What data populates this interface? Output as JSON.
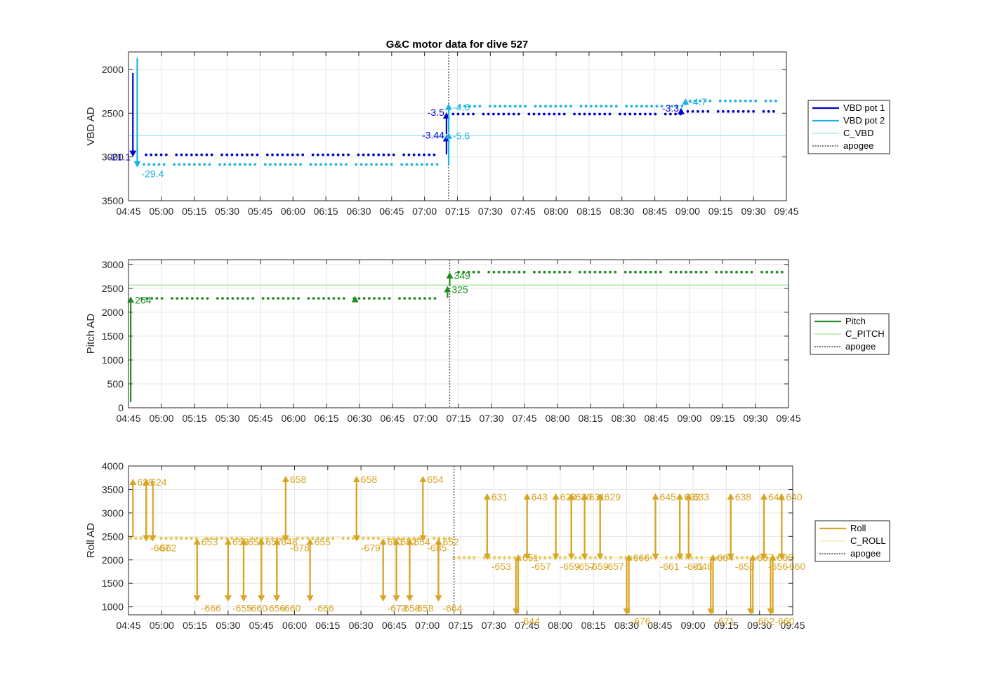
{
  "figure_title": "G&C motor data for dive 527",
  "colors": {
    "vbd1": "#0000cc",
    "vbd2": "#19b2e6",
    "c_vbd": "#7fdfe8",
    "pitch": "#218c21",
    "c_pitch": "#7fe07f",
    "roll": "#d8a526",
    "c_roll": "#f3ea88",
    "apogee": "#555555",
    "grid": "#e6e6e6"
  },
  "chart_data": [
    {
      "type": "scatter",
      "ylabel": "VBD AD",
      "ylim": [
        3500,
        1800
      ],
      "y_reversed": true,
      "yticks": [
        2000,
        2500,
        3000,
        3500
      ],
      "xlim": [
        "04:45",
        "09:45"
      ],
      "xticks": [
        "04:45",
        "05:00",
        "05:15",
        "05:30",
        "05:45",
        "06:00",
        "06:15",
        "06:30",
        "06:45",
        "07:00",
        "07:15",
        "07:30",
        "07:45",
        "08:00",
        "08:15",
        "08:30",
        "08:45",
        "09:00",
        "09:15",
        "09:30",
        "09:45"
      ],
      "apogee": "07:11",
      "series": [
        {
          "name": "VBD pot 1",
          "style": "dots",
          "segments": [
            {
              "x0": "04:53",
              "x1": "07:06",
              "y": 2975
            },
            {
              "x0": "07:13",
              "x1": "08:59",
              "y": 2510
            },
            {
              "x0": "09:00",
              "x1": "09:41",
              "y": 2480
            }
          ]
        },
        {
          "name": "VBD pot 2",
          "style": "dots",
          "segments": [
            {
              "x0": "04:52",
              "x1": "07:07",
              "y": 3085
            },
            {
              "x0": "07:16",
              "x1": "08:59",
              "y": 2420
            },
            {
              "x0": "09:01",
              "x1": "09:42",
              "y": 2360
            }
          ]
        },
        {
          "name": "C_VBD",
          "style": "hline",
          "y": 2755
        },
        {
          "name": "apogee",
          "style": "vline"
        }
      ],
      "arrows": [
        {
          "series": "VBD pot 1",
          "x": "04:47",
          "y0": 2040,
          "y1": 3000,
          "label": "-21.1"
        },
        {
          "series": "VBD pot 2",
          "x": "04:49",
          "y0": 1870,
          "y1": 3120,
          "label": "-29.4"
        },
        {
          "series": "VBD pot 1",
          "x": "07:10",
          "y0": 2970,
          "y1": 2750,
          "label": "-3.44"
        },
        {
          "series": "VBD pot 1",
          "x": "07:10",
          "y0": 2740,
          "y1": 2490,
          "label": "-3.5"
        },
        {
          "series": "VBD pot 2",
          "x": "07:11",
          "y0": 3100,
          "y1": 2720,
          "label": "-5.6"
        },
        {
          "series": "VBD pot 2",
          "x": "07:11",
          "y0": 2720,
          "y1": 2390,
          "label": "-4.6"
        },
        {
          "series": "VBD pot 1",
          "x": "08:57",
          "y0": 2520,
          "y1": 2440,
          "label": "-3.3"
        },
        {
          "series": "VBD pot 2",
          "x": "08:59",
          "y0": 2410,
          "y1": 2330,
          "label": "-4.7"
        }
      ]
    },
    {
      "type": "scatter",
      "ylabel": "Pitch AD",
      "ylim": [
        0,
        3100
      ],
      "yticks": [
        0,
        500,
        1000,
        1500,
        2000,
        2500,
        3000
      ],
      "xlim": [
        "04:45",
        "09:45"
      ],
      "xticks": [
        "04:45",
        "05:00",
        "05:15",
        "05:30",
        "05:45",
        "06:00",
        "06:15",
        "06:30",
        "06:45",
        "07:00",
        "07:15",
        "07:30",
        "07:45",
        "08:00",
        "08:15",
        "08:30",
        "08:45",
        "09:00",
        "09:15",
        "09:30",
        "09:45"
      ],
      "apogee": "07:11",
      "series": [
        {
          "name": "Pitch",
          "style": "dots",
          "segments": [
            {
              "x0": "04:51",
              "x1": "07:07",
              "y": 2290
            },
            {
              "x0": "07:15",
              "x1": "09:43",
              "y": 2840
            }
          ]
        },
        {
          "name": "C_PITCH",
          "style": "hline",
          "y": 2570
        },
        {
          "name": "apogee",
          "style": "vline"
        }
      ],
      "arrows": [
        {
          "series": "Pitch",
          "x": "04:46",
          "y0": 120,
          "y1": 2330,
          "label": "264"
        },
        {
          "series": "Pitch",
          "x": "07:11",
          "y0": 2550,
          "y1": 2840,
          "label": "349"
        },
        {
          "series": "Pitch",
          "x": "07:10",
          "y0": 2300,
          "y1": 2550,
          "label": "325"
        },
        {
          "series": "Pitch",
          "x": "06:28",
          "y0": 2290,
          "y1": 2340,
          "label": ""
        }
      ]
    },
    {
      "type": "scatter",
      "ylabel": "Roll AD",
      "ylim": [
        830,
        4000
      ],
      "yticks": [
        1000,
        1500,
        2000,
        2500,
        3000,
        3500,
        4000
      ],
      "xlim": [
        "04:45",
        "09:45"
      ],
      "xticks": [
        "04:45",
        "05:00",
        "05:15",
        "05:30",
        "05:45",
        "06:00",
        "06:15",
        "06:30",
        "06:45",
        "07:00",
        "07:15",
        "07:30",
        "07:45",
        "08:00",
        "08:15",
        "08:30",
        "08:45",
        "09:00",
        "09:15",
        "09:30",
        "09:45"
      ],
      "apogee": "07:12",
      "series": [
        {
          "name": "Roll",
          "style": "dots",
          "segments": [
            {
              "x0": "04:46",
              "x1": "07:10",
              "y": 2460
            },
            {
              "x0": "07:12",
              "x1": "09:45",
              "y": 2050
            }
          ]
        },
        {
          "name": "C_ROLL",
          "style": "hline",
          "y": 2460,
          "x1": "07:12",
          "y2": 2050
        },
        {
          "name": "apogee",
          "style": "vline"
        }
      ],
      "arrows": [
        {
          "x": "04:47",
          "y0": 2480,
          "y1": 3730,
          "label": "629"
        },
        {
          "x": "04:53",
          "y0": 2400,
          "y1": 3730,
          "label": "624"
        },
        {
          "x": "04:53",
          "y0": 3680,
          "y1": 2390,
          "label": "-667"
        },
        {
          "x": "04:56",
          "y0": 3680,
          "y1": 2390,
          "label": "-662"
        },
        {
          "x": "05:16",
          "y0": 1150,
          "y1": 2460,
          "label": "653"
        },
        {
          "x": "05:16",
          "y0": 2440,
          "y1": 1110,
          "label": "-666"
        },
        {
          "x": "05:30",
          "y0": 2440,
          "y1": 1110,
          "label": "-655"
        },
        {
          "x": "05:30",
          "y0": 1150,
          "y1": 2460,
          "label": "653"
        },
        {
          "x": "05:37",
          "y0": 2440,
          "y1": 1110,
          "label": "-660"
        },
        {
          "x": "05:37",
          "y0": 1150,
          "y1": 2460,
          "label": "655"
        },
        {
          "x": "05:45",
          "y0": 2440,
          "y1": 1110,
          "label": "-656"
        },
        {
          "x": "05:45",
          "y0": 1150,
          "y1": 2460,
          "label": "657"
        },
        {
          "x": "05:52",
          "y0": 2440,
          "y1": 1110,
          "label": "-660"
        },
        {
          "x": "05:52",
          "y0": 1150,
          "y1": 2460,
          "label": "648"
        },
        {
          "x": "05:56",
          "y0": 2450,
          "y1": 3790,
          "label": "658"
        },
        {
          "x": "05:56",
          "y0": 3740,
          "y1": 2390,
          "label": "-678"
        },
        {
          "x": "06:07",
          "y0": 1150,
          "y1": 2460,
          "label": "655"
        },
        {
          "x": "06:07",
          "y0": 2440,
          "y1": 1110,
          "label": "-666"
        },
        {
          "x": "06:28",
          "y0": 2450,
          "y1": 3790,
          "label": "658"
        },
        {
          "x": "06:28",
          "y0": 3740,
          "y1": 2390,
          "label": "-679"
        },
        {
          "x": "06:40",
          "y0": 2440,
          "y1": 1110,
          "label": "-673"
        },
        {
          "x": "06:40",
          "y0": 1150,
          "y1": 2460,
          "label": "651"
        },
        {
          "x": "06:46",
          "y0": 2440,
          "y1": 1110,
          "label": "-658"
        },
        {
          "x": "06:46",
          "y0": 1150,
          "y1": 2460,
          "label": "652"
        },
        {
          "x": "06:52",
          "y0": 2440,
          "y1": 1110,
          "label": "-658"
        },
        {
          "x": "06:52",
          "y0": 1150,
          "y1": 2460,
          "label": "654"
        },
        {
          "x": "06:58",
          "y0": 2450,
          "y1": 3790,
          "label": "654"
        },
        {
          "x": "06:58",
          "y0": 3740,
          "y1": 2390,
          "label": "-685"
        },
        {
          "x": "07:05",
          "y0": 2440,
          "y1": 1110,
          "label": "-664"
        },
        {
          "x": "07:05",
          "y0": 1150,
          "y1": 2460,
          "label": "652"
        },
        {
          "x": "07:27",
          "y0": 2060,
          "y1": 3420,
          "label": "631"
        },
        {
          "x": "07:27",
          "y0": 3370,
          "y1": 2000,
          "label": "-653"
        },
        {
          "x": "07:40",
          "y0": 2040,
          "y1": 830,
          "label": "-644"
        },
        {
          "x": "07:41",
          "y0": 860,
          "y1": 2120,
          "label": "651"
        },
        {
          "x": "07:45",
          "y0": 2060,
          "y1": 3420,
          "label": "643"
        },
        {
          "x": "07:45",
          "y0": 3370,
          "y1": 2000,
          "label": "-657"
        },
        {
          "x": "07:58",
          "y0": 2060,
          "y1": 3420,
          "label": "628"
        },
        {
          "x": "07:58",
          "y0": 3370,
          "y1": 2000,
          "label": "-659"
        },
        {
          "x": "08:05",
          "y0": 2060,
          "y1": 3420,
          "label": "630"
        },
        {
          "x": "08:05",
          "y0": 3370,
          "y1": 2000,
          "label": "-657"
        },
        {
          "x": "08:11",
          "y0": 2060,
          "y1": 3420,
          "label": "631"
        },
        {
          "x": "08:11",
          "y0": 3370,
          "y1": 2000,
          "label": "-659"
        },
        {
          "x": "08:18",
          "y0": 2060,
          "y1": 3420,
          "label": "629"
        },
        {
          "x": "08:18",
          "y0": 3370,
          "y1": 2000,
          "label": "-657"
        },
        {
          "x": "08:30",
          "y0": 2040,
          "y1": 830,
          "label": "-676"
        },
        {
          "x": "08:31",
          "y0": 860,
          "y1": 2120,
          "label": "666"
        },
        {
          "x": "08:43",
          "y0": 2060,
          "y1": 3420,
          "label": "645"
        },
        {
          "x": "08:43",
          "y0": 3370,
          "y1": 2000,
          "label": "-661"
        },
        {
          "x": "08:54",
          "y0": 2060,
          "y1": 3420,
          "label": "633"
        },
        {
          "x": "08:54",
          "y0": 3370,
          "y1": 2000,
          "label": "-661"
        },
        {
          "x": "08:58",
          "y0": 2060,
          "y1": 3420,
          "label": "633"
        },
        {
          "x": "08:58",
          "y0": 3370,
          "y1": 2000,
          "label": "-648"
        },
        {
          "x": "09:08",
          "y0": 2040,
          "y1": 830,
          "label": "-671"
        },
        {
          "x": "09:09",
          "y0": 860,
          "y1": 2120,
          "label": "664"
        },
        {
          "x": "09:17",
          "y0": 2060,
          "y1": 3420,
          "label": "638"
        },
        {
          "x": "09:17",
          "y0": 3370,
          "y1": 2000,
          "label": "-658"
        },
        {
          "x": "09:26",
          "y0": 2040,
          "y1": 830,
          "label": "-652"
        },
        {
          "x": "09:27",
          "y0": 860,
          "y1": 2120,
          "label": "657"
        },
        {
          "x": "09:32",
          "y0": 2060,
          "y1": 3420,
          "label": "641"
        },
        {
          "x": "09:32",
          "y0": 3370,
          "y1": 2000,
          "label": "-656"
        },
        {
          "x": "09:35",
          "y0": 2040,
          "y1": 830,
          "label": "-660"
        },
        {
          "x": "09:36",
          "y0": 860,
          "y1": 2120,
          "label": "665"
        },
        {
          "x": "09:40",
          "y0": 2060,
          "y1": 3420,
          "label": "640"
        },
        {
          "x": "09:40",
          "y0": 3370,
          "y1": 2000,
          "label": "-660"
        }
      ]
    }
  ],
  "legends": [
    {
      "items": [
        {
          "label": "VBD pot 1",
          "style": "thick",
          "color": "vbd1"
        },
        {
          "label": "VBD pot 2",
          "style": "thick",
          "color": "vbd2"
        },
        {
          "label": "C_VBD",
          "style": "thin",
          "color": "c_vbd"
        },
        {
          "label": "apogee",
          "style": "dotted",
          "color": "apogee"
        }
      ]
    },
    {
      "items": [
        {
          "label": "Pitch",
          "style": "thick",
          "color": "pitch"
        },
        {
          "label": "C_PITCH",
          "style": "thin",
          "color": "c_pitch"
        },
        {
          "label": "apogee",
          "style": "dotted",
          "color": "apogee"
        }
      ]
    },
    {
      "items": [
        {
          "label": "Roll",
          "style": "thick",
          "color": "roll"
        },
        {
          "label": "C_ROLL",
          "style": "thin",
          "color": "c_roll"
        },
        {
          "label": "apogee",
          "style": "dotted",
          "color": "apogee"
        }
      ]
    }
  ]
}
